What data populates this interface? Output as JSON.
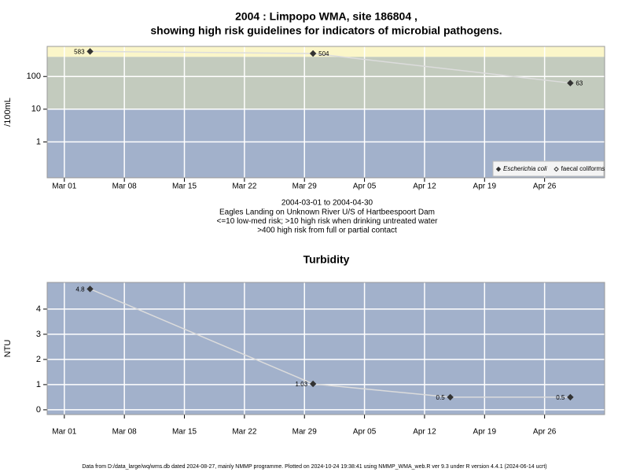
{
  "chart_data": [
    {
      "type": "line",
      "title": "2004 : Limpopo WMA, site 186804 ,",
      "subtitle": "showing high risk guidelines for indicators of microbial pathogens.",
      "y_label": "/100mL",
      "notes": [
        "2004-03-01 to 2004-04-30",
        "Eagles Landing on Unknown River U/S of Hartbeespoort Dam",
        "<=10 low-med risk; >10 high risk when drinking untreated water",
        ">400 high risk from full or partial contact"
      ],
      "x": [
        "Mar 04",
        "Mar 30",
        "Apr 29"
      ],
      "series": [
        {
          "name": "Escherichia coli",
          "color": "#333333",
          "marker": "filled",
          "font_style": "italic",
          "values": [
            583,
            504,
            63
          ]
        },
        {
          "name": "faecal coliforms",
          "color": "#333333",
          "marker": "open",
          "values": [
            null,
            null,
            null
          ]
        }
      ],
      "xlim": [
        "Feb 28",
        "May 03"
      ],
      "xticks": [
        "Mar 01",
        "Mar 08",
        "Mar 15",
        "Mar 22",
        "Mar 29",
        "Apr 05",
        "Apr 12",
        "Apr 19",
        "Apr 26"
      ],
      "ylim": [
        0.08,
        830
      ],
      "yticks": [
        1,
        10,
        100
      ],
      "log_y": true,
      "grid": true,
      "thresholds": [
        10,
        400
      ],
      "band_colors": [
        "#a2b1cb",
        "#c3cbbe",
        "#fbf6c9"
      ],
      "legend": "lower right",
      "line_color": "#dcdcdc"
    },
    {
      "type": "line",
      "title": "Turbidity",
      "y_label": "NTU",
      "x": [
        "Mar 04",
        "Mar 30",
        "Apr 15",
        "Apr 29"
      ],
      "series": [
        {
          "name": "Turbidity",
          "color": "#333333",
          "marker": "filled",
          "values": [
            4.8,
            1.03,
            0.5,
            0.5
          ]
        }
      ],
      "xlim": [
        "Feb 28",
        "May 03"
      ],
      "xticks": [
        "Mar 01",
        "Mar 08",
        "Mar 15",
        "Mar 22",
        "Mar 29",
        "Apr 05",
        "Apr 12",
        "Apr 19",
        "Apr 26"
      ],
      "ylim": [
        -0.19,
        5.06
      ],
      "yticks": [
        0,
        1,
        2,
        3,
        4
      ],
      "log_y": false,
      "grid": true,
      "background": "#a2b1cb",
      "line_color": "#dcdcdc"
    }
  ],
  "footer": "Data from D:/data_large/wq/wms.db dated 2024-08-27, mainly NMMP programme. Plotted on 2024-10-24 19:38:41 using NMMP_WMA_web.R ver 9.3 under R version 4.4.1 (2024-06-14 ucrt)"
}
